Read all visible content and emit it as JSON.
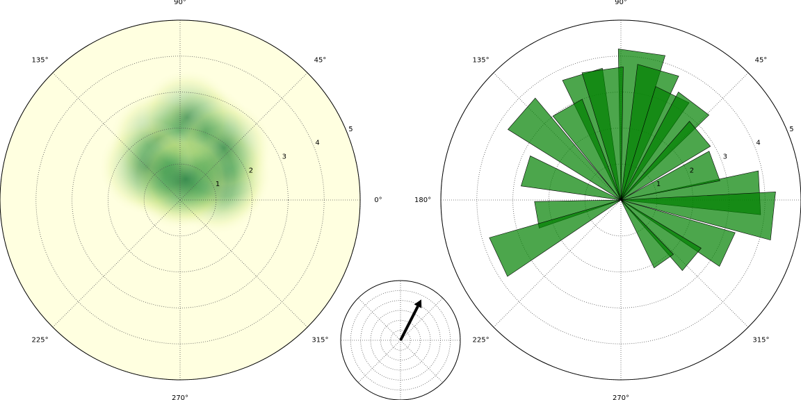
{
  "chart_data": [
    {
      "type": "density",
      "x": [
        90,
        100,
        80,
        60,
        45,
        120,
        70,
        110,
        30,
        20,
        95,
        85,
        50,
        135,
        75
      ],
      "values": [
        0.8,
        1.2,
        1.5,
        1.0,
        1.3,
        0.9,
        2.0,
        1.8,
        1.4,
        1.1,
        0.5,
        2.3,
        1.9,
        1.3,
        0.6
      ],
      "rlim": [
        0,
        5
      ],
      "rticks": [
        1,
        2,
        3,
        4,
        5
      ],
      "thetaticks": [
        {
          "value": 0,
          "label": "0°"
        },
        {
          "value": 45,
          "label": "45°"
        },
        {
          "value": 90,
          "label": "90°"
        },
        {
          "value": 135,
          "label": "135°"
        },
        {
          "value": 225,
          "label": "225°"
        },
        {
          "value": 270,
          "label": "270°"
        },
        {
          "value": 315,
          "label": "315°"
        }
      ],
      "color": "#0b6e3a",
      "background": "#ffffe0"
    },
    {
      "type": "rose",
      "x": [
        82,
        107,
        98,
        74,
        64,
        53,
        40,
        139,
        163,
        190,
        205,
        3,
        354,
        335,
        320,
        305,
        20,
        120
      ],
      "values": [
        4.2,
        3.7,
        3.7,
        3.8,
        3.3,
        3.4,
        2.9,
        3.7,
        2.8,
        2.4,
        3.8,
        3.9,
        4.3,
        3.3,
        2.6,
        2.1,
        2.8,
        3.0
      ],
      "rlim": [
        0,
        5
      ],
      "rticks": [
        1,
        2,
        3,
        4,
        5
      ],
      "thetaticks": [
        {
          "value": 0,
          "label": "0°"
        },
        {
          "value": 45,
          "label": "45°"
        },
        {
          "value": 90,
          "label": "90°"
        },
        {
          "value": 135,
          "label": "135°"
        },
        {
          "value": 180,
          "label": "180°"
        },
        {
          "value": 225,
          "label": "225°"
        },
        {
          "value": 270,
          "label": "270°"
        },
        {
          "value": 315,
          "label": "315°"
        }
      ],
      "color": "#008000"
    },
    {
      "type": "arrow",
      "x": [
        63
      ],
      "values": [
        4.6
      ],
      "rlim": [
        0,
        6
      ],
      "rticks": [
        1,
        2,
        3,
        4,
        5,
        6
      ],
      "thetaticks": [
        0,
        45,
        90,
        135,
        180,
        225,
        270,
        315
      ],
      "color": "#000000"
    }
  ]
}
